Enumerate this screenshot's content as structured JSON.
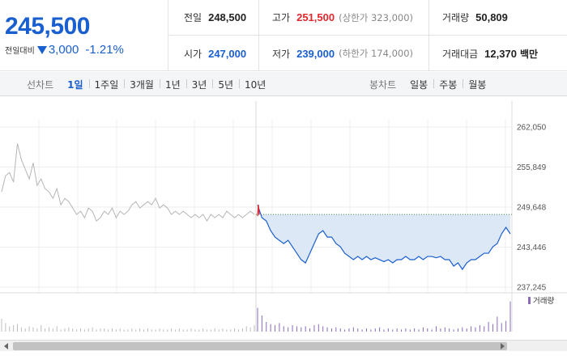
{
  "quote": {
    "price": "245,500",
    "change_label": "전일대비",
    "change_value": "3,000",
    "change_percent": "-1.21%",
    "direction_icon": "down-triangle-icon",
    "colors": {
      "up": "#e0282e",
      "down": "#1a5fcf"
    }
  },
  "stats": {
    "prev_close": {
      "label": "전일",
      "value": "248,500"
    },
    "high": {
      "label": "고가",
      "value": "251,500",
      "limit": "(상한가 323,000)"
    },
    "volume": {
      "label": "거래량",
      "value": "50,809"
    },
    "open": {
      "label": "시가",
      "value": "247,000"
    },
    "low": {
      "label": "저가",
      "value": "239,000",
      "limit": "(하한가 174,000)"
    },
    "trade_value": {
      "label": "거래대금",
      "value": "12,370",
      "unit": "백만"
    }
  },
  "toolbar": {
    "line_title": "선차트",
    "line_periods": [
      "1일",
      "1주일",
      "3개월",
      "1년",
      "3년",
      "5년",
      "10년"
    ],
    "active_period": "1일",
    "candle_title": "봉차트",
    "candle_periods": [
      "일봉",
      "주봉",
      "월봉"
    ]
  },
  "chart_data": {
    "type": "line",
    "y_ticks": [
      "262,050",
      "255,849",
      "249,648",
      "243,446",
      "237,245"
    ],
    "ylim": [
      237245,
      262050
    ],
    "prev_close_reference": 248500,
    "volume_legend": "거래량",
    "series": [
      {
        "name": "prev-day",
        "color": "#b5b5b5",
        "values": [
          252000,
          254500,
          255000,
          253500,
          259500,
          257000,
          255500,
          254000,
          256500,
          253000,
          254000,
          252500,
          252000,
          251000,
          252500,
          250000,
          251000,
          250500,
          249500,
          248500,
          249000,
          248000,
          249500,
          249000,
          247500,
          248000,
          249000,
          248500,
          249500,
          248000,
          249000,
          248500,
          249000,
          250000,
          250500,
          249500,
          250000,
          250500,
          250000,
          251000,
          249500,
          250000,
          249500,
          248500,
          249000,
          248500,
          249000,
          248500,
          248000,
          248500,
          248000,
          248500,
          247500,
          248500,
          248000,
          248500,
          248000,
          249000,
          248500,
          248000,
          248500,
          248000,
          248500,
          249000,
          248500
        ]
      },
      {
        "name": "today",
        "color": "#1a5fcf",
        "fill": "#dde8f6",
        "values": [
          250000,
          248000,
          247500,
          246000,
          245000,
          244500,
          244000,
          244500,
          243500,
          242500,
          241500,
          241000,
          242500,
          244000,
          245500,
          246000,
          245000,
          245000,
          244000,
          243500,
          242500,
          242000,
          241500,
          242000,
          241500,
          242000,
          241500,
          241800,
          241500,
          241200,
          241500,
          241000,
          241500,
          241500,
          242000,
          241500,
          241500,
          242000,
          241500,
          242000,
          242000,
          241800,
          242000,
          241500,
          241500,
          240500,
          241000,
          240000,
          241000,
          241500,
          241500,
          242000,
          242500,
          242500,
          243500,
          244000,
          245500,
          246500,
          245500
        ]
      }
    ],
    "volume": {
      "prev_day": [
        1.2,
        0.8,
        0.5,
        0.6,
        0.7,
        0.4,
        0.3,
        0.5,
        0.4,
        0.3,
        0.6,
        0.3,
        0.4,
        0.3,
        0.5,
        0.2,
        0.3,
        0.4,
        0.3,
        0.2,
        0.3,
        0.2,
        0.3,
        0.4,
        0.2,
        0.3,
        0.3,
        0.2,
        0.3,
        0.2,
        0.3,
        0.2,
        0.2,
        0.3,
        0.2,
        0.3,
        0.2,
        0.3,
        0.2,
        0.2,
        0.3,
        0.2,
        0.2,
        0.3,
        0.2,
        0.3,
        0.2,
        0.2,
        0.3,
        0.2,
        0.2,
        0.3,
        0.2,
        0.2,
        0.3,
        0.2,
        0.3,
        0.2,
        0.2,
        0.3,
        0.2,
        0.3,
        0.5,
        0.4,
        0.6
      ],
      "today": [
        2.2,
        1.5,
        0.9,
        0.7,
        0.6,
        0.8,
        0.5,
        0.4,
        0.6,
        0.5,
        0.4,
        0.5,
        0.3,
        0.6,
        0.7,
        0.5,
        0.4,
        0.3,
        0.4,
        0.3,
        0.2,
        0.3,
        0.4,
        0.3,
        0.2,
        0.3,
        0.2,
        0.3,
        0.4,
        0.2,
        0.3,
        0.2,
        0.3,
        0.2,
        0.3,
        0.2,
        0.3,
        0.2,
        0.4,
        0.3,
        0.2,
        0.5,
        0.3,
        0.4,
        0.3,
        0.2,
        0.3,
        0.4,
        0.3,
        0.5,
        0.4,
        0.6,
        0.5,
        0.9,
        0.7,
        1.4,
        0.8,
        1.0,
        2.8
      ]
    }
  }
}
